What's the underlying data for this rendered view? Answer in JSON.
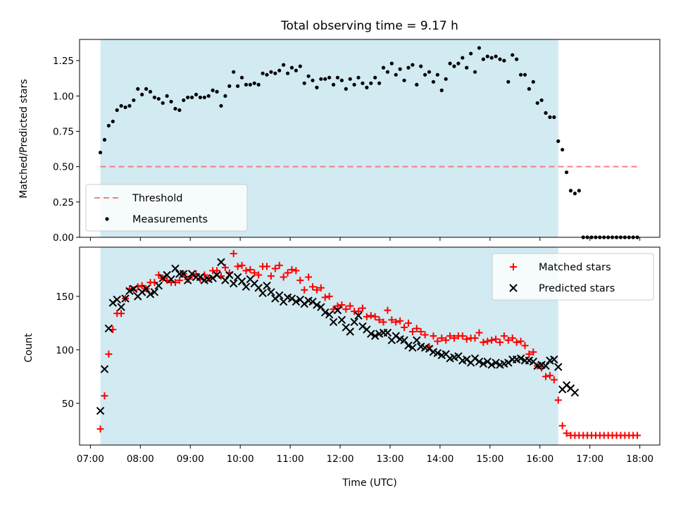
{
  "chart_data": [
    {
      "type": "scatter",
      "title": "Total observing time = 9.17 h",
      "xlabel": "",
      "ylabel": "Matched/Predicted stars",
      "xlim": [
        "06:47",
        "18:24"
      ],
      "ylim": [
        0,
        1.4
      ],
      "yticks": [
        0.0,
        0.25,
        0.5,
        0.75,
        1.0,
        1.25
      ],
      "ytick_labels": [
        "0.00",
        "0.25",
        "0.50",
        "0.75",
        "1.00",
        "1.25"
      ],
      "shaded_interval": [
        "07:12",
        "16:22"
      ],
      "shade_color": "#add8e6",
      "threshold": {
        "name": "Threshold",
        "value": 0.5,
        "x_range": [
          "07:12",
          "18:00"
        ],
        "color": "#f08080"
      },
      "legend": {
        "position": "lower-left",
        "entries": [
          "Threshold",
          "Measurements"
        ]
      },
      "series": [
        {
          "name": "Measurements",
          "color": "#000000",
          "marker": "dot",
          "x": [
            "07:12",
            "07:17",
            "07:22",
            "07:27",
            "07:32",
            "07:37",
            "07:42",
            "07:47",
            "07:52",
            "07:57",
            "08:02",
            "08:07",
            "08:12",
            "08:17",
            "08:22",
            "08:27",
            "08:32",
            "08:37",
            "08:42",
            "08:47",
            "08:52",
            "08:57",
            "09:02",
            "09:07",
            "09:12",
            "09:17",
            "09:22",
            "09:27",
            "09:32",
            "09:37",
            "09:42",
            "09:47",
            "09:52",
            "09:57",
            "10:02",
            "10:07",
            "10:12",
            "10:17",
            "10:22",
            "10:27",
            "10:32",
            "10:37",
            "10:42",
            "10:47",
            "10:52",
            "10:57",
            "11:02",
            "11:07",
            "11:12",
            "11:17",
            "11:22",
            "11:27",
            "11:32",
            "11:37",
            "11:42",
            "11:47",
            "11:52",
            "11:57",
            "12:02",
            "12:07",
            "12:12",
            "12:17",
            "12:22",
            "12:27",
            "12:32",
            "12:37",
            "12:42",
            "12:47",
            "12:52",
            "12:57",
            "13:02",
            "13:07",
            "13:12",
            "13:17",
            "13:22",
            "13:27",
            "13:32",
            "13:37",
            "13:42",
            "13:47",
            "13:52",
            "13:57",
            "14:02",
            "14:07",
            "14:12",
            "14:17",
            "14:22",
            "14:27",
            "14:32",
            "14:37",
            "14:42",
            "14:47",
            "14:52",
            "14:57",
            "15:02",
            "15:07",
            "15:12",
            "15:17",
            "15:22",
            "15:27",
            "15:32",
            "15:37",
            "15:42",
            "15:47",
            "15:52",
            "15:57",
            "16:02",
            "16:07",
            "16:12",
            "16:17",
            "16:22",
            "16:27",
            "16:32",
            "16:37",
            "16:42",
            "16:47",
            "16:52",
            "16:57",
            "17:02",
            "17:07",
            "17:12",
            "17:17",
            "17:22",
            "17:27",
            "17:32",
            "17:37",
            "17:42",
            "17:47",
            "17:52",
            "17:57"
          ],
          "y": [
            0.6,
            0.69,
            0.79,
            0.82,
            0.9,
            0.93,
            0.92,
            0.93,
            0.97,
            1.05,
            1.01,
            1.05,
            1.03,
            0.99,
            0.98,
            0.95,
            1.0,
            0.96,
            0.91,
            0.9,
            0.97,
            0.99,
            0.99,
            1.01,
            0.99,
            0.99,
            1.0,
            1.04,
            1.03,
            0.93,
            1.0,
            1.07,
            1.17,
            1.07,
            1.13,
            1.08,
            1.08,
            1.09,
            1.08,
            1.16,
            1.15,
            1.17,
            1.16,
            1.18,
            1.22,
            1.16,
            1.2,
            1.18,
            1.21,
            1.09,
            1.14,
            1.11,
            1.06,
            1.12,
            1.12,
            1.13,
            1.08,
            1.13,
            1.11,
            1.05,
            1.12,
            1.08,
            1.13,
            1.09,
            1.06,
            1.09,
            1.13,
            1.09,
            1.2,
            1.17,
            1.23,
            1.15,
            1.19,
            1.11,
            1.2,
            1.22,
            1.08,
            1.21,
            1.15,
            1.17,
            1.1,
            1.15,
            1.04,
            1.12,
            1.23,
            1.21,
            1.23,
            1.27,
            1.2,
            1.3,
            1.17,
            1.34,
            1.26,
            1.28,
            1.27,
            1.28,
            1.26,
            1.25,
            1.1,
            1.29,
            1.26,
            1.15,
            1.15,
            1.05,
            1.1,
            0.95,
            0.97,
            0.88,
            0.85,
            0.85,
            0.68,
            0.62,
            0.46,
            0.33,
            0.31,
            0.33,
            0,
            0,
            0,
            0,
            0,
            0,
            0,
            0,
            0,
            0,
            0,
            0,
            0,
            0
          ]
        }
      ]
    },
    {
      "type": "scatter",
      "title": "",
      "xlabel": "Time (UTC)",
      "ylabel": "Count",
      "xlim": [
        "06:47",
        "18:24"
      ],
      "ylim": [
        11,
        196
      ],
      "yticks": [
        50,
        100,
        150
      ],
      "xticks": [
        "07:00",
        "08:00",
        "09:00",
        "10:00",
        "11:00",
        "12:00",
        "13:00",
        "14:00",
        "15:00",
        "16:00",
        "17:00",
        "18:00"
      ],
      "shaded_interval": [
        "07:12",
        "16:22"
      ],
      "shade_color": "#add8e6",
      "legend": {
        "position": "upper-right",
        "entries": [
          "Matched stars",
          "Predicted stars"
        ]
      },
      "series": [
        {
          "name": "Matched stars",
          "color": "#ff0000",
          "marker": "plus",
          "x": [
            "07:12",
            "07:17",
            "07:22",
            "07:27",
            "07:32",
            "07:37",
            "07:42",
            "07:47",
            "07:52",
            "07:57",
            "08:02",
            "08:07",
            "08:12",
            "08:17",
            "08:22",
            "08:27",
            "08:32",
            "08:37",
            "08:42",
            "08:47",
            "08:52",
            "08:57",
            "09:02",
            "09:07",
            "09:12",
            "09:17",
            "09:22",
            "09:27",
            "09:32",
            "09:37",
            "09:42",
            "09:47",
            "09:52",
            "09:57",
            "10:02",
            "10:07",
            "10:12",
            "10:17",
            "10:22",
            "10:27",
            "10:32",
            "10:37",
            "10:42",
            "10:47",
            "10:52",
            "10:57",
            "11:02",
            "11:07",
            "11:12",
            "11:17",
            "11:22",
            "11:27",
            "11:32",
            "11:37",
            "11:42",
            "11:47",
            "11:52",
            "11:57",
            "12:02",
            "12:07",
            "12:12",
            "12:17",
            "12:22",
            "12:27",
            "12:32",
            "12:37",
            "12:42",
            "12:47",
            "12:52",
            "12:57",
            "13:02",
            "13:07",
            "13:12",
            "13:17",
            "13:22",
            "13:27",
            "13:32",
            "13:37",
            "13:42",
            "13:47",
            "13:52",
            "13:57",
            "14:02",
            "14:07",
            "14:12",
            "14:17",
            "14:22",
            "14:27",
            "14:32",
            "14:37",
            "14:42",
            "14:47",
            "14:52",
            "14:57",
            "15:02",
            "15:07",
            "15:12",
            "15:17",
            "15:22",
            "15:27",
            "15:32",
            "15:37",
            "15:42",
            "15:47",
            "15:52",
            "15:57",
            "16:02",
            "16:07",
            "16:12",
            "16:17",
            "16:22",
            "16:27",
            "16:32",
            "16:37",
            "16:42",
            "16:47",
            "16:52",
            "16:57",
            "17:02",
            "17:07",
            "17:12",
            "17:17",
            "17:22",
            "17:27",
            "17:32",
            "17:37",
            "17:42",
            "17:47",
            "17:52",
            "17:57"
          ],
          "y": [
            26,
            57,
            96,
            119,
            134,
            134,
            148,
            157,
            156,
            159,
            160,
            157,
            163,
            163,
            170,
            167,
            165,
            163,
            163,
            165,
            171,
            166,
            169,
            171,
            166,
            170,
            167,
            174,
            174,
            169,
            177,
            172,
            190,
            178,
            179,
            174,
            175,
            172,
            170,
            178,
            178,
            169,
            176,
            179,
            168,
            172,
            175,
            174,
            165,
            156,
            168,
            159,
            156,
            158,
            149,
            150,
            138,
            141,
            142,
            138,
            141,
            136,
            136,
            139,
            131,
            132,
            131,
            128,
            126,
            137,
            128,
            126,
            127,
            121,
            125,
            117,
            120,
            117,
            114,
            103,
            113,
            108,
            111,
            109,
            113,
            111,
            113,
            113,
            110,
            111,
            111,
            116,
            107,
            108,
            109,
            110,
            107,
            113,
            109,
            111,
            107,
            108,
            104,
            96,
            98,
            85,
            83,
            75,
            76,
            72,
            53,
            29,
            22,
            20,
            20,
            20,
            20,
            20,
            20,
            20,
            20,
            20,
            20,
            20,
            20,
            20,
            20,
            20,
            20,
            20
          ]
        },
        {
          "name": "Predicted stars",
          "color": "#000000",
          "marker": "x",
          "x": [
            "07:12",
            "07:17",
            "07:22",
            "07:27",
            "07:32",
            "07:37",
            "07:42",
            "07:47",
            "07:52",
            "07:57",
            "08:02",
            "08:07",
            "08:12",
            "08:17",
            "08:22",
            "08:27",
            "08:32",
            "08:37",
            "08:42",
            "08:47",
            "08:52",
            "08:57",
            "09:02",
            "09:07",
            "09:12",
            "09:17",
            "09:22",
            "09:27",
            "09:32",
            "09:37",
            "09:42",
            "09:47",
            "09:52",
            "09:57",
            "10:02",
            "10:07",
            "10:12",
            "10:17",
            "10:22",
            "10:27",
            "10:32",
            "10:37",
            "10:42",
            "10:47",
            "10:52",
            "10:57",
            "11:02",
            "11:07",
            "11:12",
            "11:17",
            "11:22",
            "11:27",
            "11:32",
            "11:37",
            "11:42",
            "11:47",
            "11:52",
            "11:57",
            "12:02",
            "12:07",
            "12:12",
            "12:17",
            "12:22",
            "12:27",
            "12:32",
            "12:37",
            "12:42",
            "12:47",
            "12:52",
            "12:57",
            "13:02",
            "13:07",
            "13:12",
            "13:17",
            "13:22",
            "13:27",
            "13:32",
            "13:37",
            "13:42",
            "13:47",
            "13:52",
            "13:57",
            "14:02",
            "14:07",
            "14:12",
            "14:17",
            "14:22",
            "14:27",
            "14:32",
            "14:37",
            "14:42",
            "14:47",
            "14:52",
            "14:57",
            "15:02",
            "15:07",
            "15:12",
            "15:17",
            "15:22",
            "15:27",
            "15:32",
            "15:37",
            "15:42",
            "15:47",
            "15:52",
            "15:57",
            "16:02",
            "16:07",
            "16:12",
            "16:17",
            "16:22",
            "16:27",
            "16:32",
            "16:37",
            "16:42"
          ],
          "y": [
            43,
            82,
            120,
            144,
            147,
            140,
            148,
            155,
            157,
            150,
            154,
            157,
            152,
            154,
            160,
            167,
            170,
            166,
            176,
            171,
            171,
            165,
            171,
            168,
            168,
            165,
            166,
            167,
            170,
            182,
            165,
            170,
            162,
            168,
            164,
            159,
            166,
            162,
            158,
            153,
            160,
            154,
            148,
            151,
            145,
            149,
            148,
            145,
            147,
            143,
            146,
            145,
            142,
            140,
            135,
            133,
            126,
            137,
            128,
            121,
            117,
            126,
            132,
            122,
            119,
            115,
            113,
            115,
            116,
            116,
            109,
            113,
            110,
            109,
            104,
            102,
            109,
            103,
            102,
            101,
            98,
            97,
            95,
            96,
            92,
            93,
            94,
            90,
            91,
            88,
            92,
            89,
            87,
            89,
            86,
            88,
            86,
            87,
            88,
            91,
            91,
            92,
            90,
            90,
            89,
            85,
            86,
            85,
            90,
            91,
            84,
            63,
            67,
            64,
            60
          ]
        }
      ]
    }
  ]
}
